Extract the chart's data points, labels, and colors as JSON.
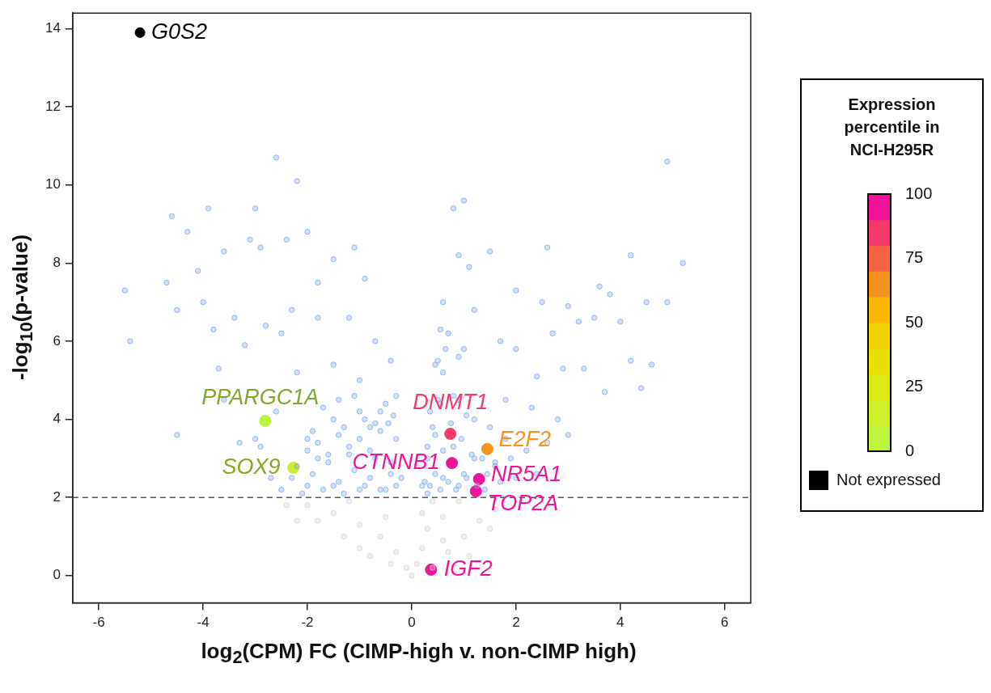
{
  "chart_data": {
    "type": "scatter",
    "xlabel": "log$_{2}$(CPM) FC (CIMP-high v. non-CIMP high)",
    "ylabel": "-log$_{10}$(p-value)",
    "clabel": "Expression percentile in NCI-H295R",
    "clim": [
      0,
      100
    ],
    "cticks": [
      0,
      25,
      50,
      75,
      100
    ],
    "legend": "right",
    "marker": "circle",
    "xlim": [
      -6.5,
      6.5
    ],
    "ylim": [
      -0.7,
      14.4
    ],
    "xticks": [
      -6,
      -4,
      -2,
      0,
      2,
      4,
      6
    ],
    "yticks": [
      0,
      2,
      4,
      6,
      8,
      10,
      12,
      14
    ],
    "ref_lines": [
      {
        "axis": "y",
        "value": 2,
        "line_style": "dashed",
        "color": "#555555"
      }
    ],
    "series": [
      {
        "color": "#d3d3d3",
        "x": [
          0,
          -0.1,
          -0.3,
          -0.6,
          -1,
          -1.5,
          -2,
          -2.4,
          -1.3,
          -0.8,
          -0.4,
          -1.8,
          -2.2,
          -1,
          -0.5,
          -1.2,
          0.1,
          0.2,
          0.3,
          0.4,
          0.7,
          1,
          1.3,
          1.6,
          1.1,
          0.6,
          0.9,
          0.2,
          1.5,
          0.4,
          0.6
        ],
        "values": [
          0,
          0.2,
          0.6,
          1,
          1.3,
          1.6,
          1.8,
          1.8,
          1,
          0.5,
          0.3,
          1.4,
          1.4,
          0.7,
          1.5,
          1.9,
          0.3,
          0.7,
          1.2,
          0.2,
          0.6,
          1,
          1.4,
          1.7,
          0.5,
          1.5,
          1.9,
          1.6,
          1.2,
          1.9,
          0.9
        ]
      },
      {
        "color": "#7da7ee",
        "x": [
          -5.5,
          -5.4,
          -4.6,
          -4.7,
          -4.5,
          -4.3,
          -4.1,
          -3.9,
          -4,
          -3.6,
          -3.8,
          -3.1,
          -3,
          -2.9,
          -2.6,
          -2.4,
          -2.2,
          -2,
          -1.8,
          -1.5,
          -1.1,
          -0.9,
          -3.4,
          -3.2,
          -2.8,
          -2.5,
          -2.3,
          -1.8,
          -1.2,
          -0.7,
          -0.4,
          -3.6,
          -4.5,
          -3.7,
          -2.2,
          -1.5,
          -1,
          -0.3,
          -3,
          -2.6,
          -3.3,
          -2,
          -1.5,
          -1,
          -0.5,
          -0.3,
          -0.2,
          -0.5,
          -1,
          -1.5,
          -2,
          -2.5,
          -1.8,
          -1.2,
          -0.7,
          -2.2,
          -1.3,
          -0.8,
          -0.4,
          -2.9,
          -2.7,
          0.8,
          1,
          1.5,
          0.9,
          1.1,
          2.6,
          4.2,
          4.9,
          5.2,
          4.9,
          4.5,
          3.8,
          3.6,
          3.5,
          4,
          2,
          2.5,
          3,
          3.2,
          2.7,
          2,
          1.7,
          2.9,
          3.3,
          2.4,
          3.7,
          4.4,
          4.2,
          4.6,
          1.8,
          2.3,
          2.8,
          3,
          2.6,
          2.2,
          1.2,
          0.6,
          0.7,
          1,
          0.5,
          0.2,
          0.3,
          0.4,
          0.5,
          0.6,
          0.9,
          1.2,
          1.5,
          1.8,
          1.2,
          1.6,
          2,
          0.9,
          1.4,
          0.6,
          0.3,
          2.4,
          1.9,
          0.8,
          1,
          -2.3,
          -2.1,
          -1.9,
          -1.7,
          -1.6,
          -1.4,
          -1.3,
          -1.1,
          -0.9,
          -0.8,
          -0.6,
          -0.4,
          -0.3,
          -2,
          -1.8,
          -1.6,
          -1.4,
          -1.2,
          -1,
          -0.8,
          -0.6,
          -0.45,
          -1.7,
          -1.4,
          -1.1,
          -0.9,
          -0.6,
          -0.35,
          -1.9,
          -0.7,
          0.25,
          0.35,
          0.45,
          0.55,
          0.7,
          0.85,
          1.05,
          1.25,
          1.45,
          1.7,
          0.3,
          0.45,
          0.6,
          0.75,
          0.95,
          1.15,
          1.35,
          1.6,
          0.35,
          0.55,
          0.8,
          1.05,
          0.45,
          0.65,
          0.9,
          0.55
        ],
        "values": [
          7.3,
          6,
          9.2,
          7.5,
          6.8,
          8.8,
          7.8,
          9.4,
          7,
          8.3,
          6.3,
          8.6,
          9.4,
          8.4,
          10.7,
          8.6,
          10.1,
          8.8,
          7.5,
          8.1,
          8.4,
          7.6,
          6.6,
          5.9,
          6.4,
          6.2,
          6.8,
          6.6,
          6.6,
          6,
          5.5,
          4.5,
          3.6,
          5.3,
          5.2,
          5.4,
          5,
          4.6,
          3.5,
          4.2,
          3.4,
          3.5,
          4,
          4.2,
          4.4,
          3.5,
          2.5,
          2.2,
          2.2,
          2.3,
          2.3,
          2.2,
          3,
          3.1,
          3,
          2.8,
          3.8,
          3.8,
          2.9,
          3.3,
          2.5,
          9.4,
          9.6,
          8.3,
          8.2,
          7.9,
          8.4,
          8.2,
          10.6,
          8,
          7,
          7,
          7.2,
          7.4,
          6.6,
          6.5,
          7.3,
          7,
          6.9,
          6.5,
          6.2,
          5.8,
          6,
          5.3,
          5.3,
          5.1,
          4.7,
          4.8,
          5.5,
          5.4,
          4.5,
          4.3,
          4,
          3.6,
          3.4,
          3.2,
          6.8,
          7,
          6.2,
          5.8,
          5.5,
          2.3,
          3,
          3.8,
          4.5,
          5.2,
          4.5,
          4,
          3.8,
          3.5,
          3,
          2.8,
          2.5,
          2.3,
          2.2,
          2.5,
          2.1,
          2.6,
          3,
          3.3,
          2.6,
          2.5,
          2.1,
          2.6,
          2.2,
          2.9,
          2.4,
          2.1,
          2.7,
          2.3,
          2.5,
          2.2,
          2.6,
          2.3,
          3.2,
          3.4,
          3.1,
          3.6,
          3.3,
          3.5,
          3.2,
          3.7,
          3.9,
          4.3,
          4.5,
          4.6,
          4,
          4.2,
          4.1,
          3.7,
          3.9,
          2.4,
          2.3,
          2.6,
          2.2,
          2.4,
          2.2,
          2.5,
          2.3,
          2.6,
          2.4,
          3.3,
          3.6,
          3.2,
          3.9,
          3.5,
          3.1,
          3,
          2.9,
          4.2,
          4.4,
          4.6,
          4.1,
          5.4,
          5.8,
          5.6,
          6.3
        ]
      },
      {
        "x": [
          -2.81,
          -2.27,
          0.74,
          1.45,
          0.77,
          1.29,
          1.23,
          0.37
        ],
        "values": [
          3.96,
          2.76,
          3.63,
          3.24,
          2.88,
          2.47,
          2.16,
          0.15
        ],
        "cvalues": [
          5,
          15,
          88,
          65,
          97,
          97,
          97,
          99
        ],
        "colors": [
          "#bdf53c",
          "#cdf02a",
          "#f43a6c",
          "#f8921e",
          "#f0129a",
          "#f0129a",
          "#f0129a",
          "#f0129a"
        ]
      },
      {
        "name": "Not expressed",
        "color": "#000000",
        "x": [
          -5.21
        ],
        "values": [
          13.9
        ]
      }
    ],
    "annotations": [
      {
        "text": "G0S2",
        "x": -5.21,
        "y": 13.9
      },
      {
        "text": "PPARGC1A",
        "x": -2.81,
        "y": 3.96
      },
      {
        "text": "SOX9",
        "x": -2.27,
        "y": 2.76
      },
      {
        "text": "DNMT1",
        "x": 0.74,
        "y": 3.63
      },
      {
        "text": "E2F2",
        "x": 1.45,
        "y": 3.24
      },
      {
        "text": "CTNNB1",
        "x": 0.77,
        "y": 2.88
      },
      {
        "text": "NR5A1",
        "x": 1.29,
        "y": 2.47
      },
      {
        "text": "TOP2A",
        "x": 1.23,
        "y": 2.16
      },
      {
        "text": "IGF2",
        "x": 0.37,
        "y": 0.15
      }
    ]
  }
}
